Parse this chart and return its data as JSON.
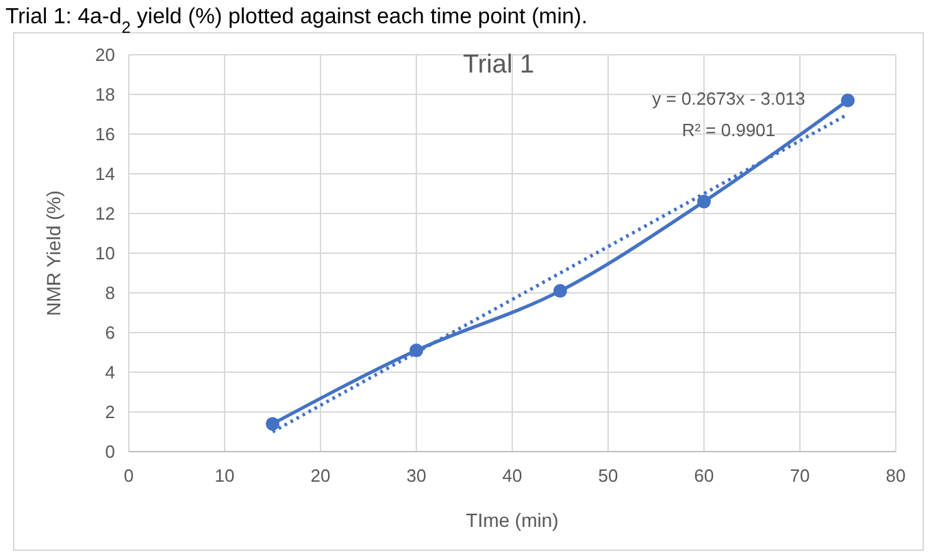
{
  "chart_data": {
    "type": "line",
    "title": "Trial 1",
    "xlabel": "TIme (min)",
    "ylabel": "NMR Yield (%)",
    "annotations": [
      "Trial 1:  4a-d$_{2}$ yield (%) plotted against each time point (min).",
      "y = 0.2673x - 3.013",
      "R² = 0.9901"
    ],
    "xlim": [
      0,
      80
    ],
    "xticks": [
      0,
      10,
      20,
      30,
      40,
      50,
      60,
      70,
      80
    ],
    "ylim": [
      0,
      20
    ],
    "yticks": [
      0,
      2,
      4,
      6,
      8,
      10,
      12,
      14,
      16,
      18,
      20
    ],
    "grid": true,
    "series": [
      {
        "color": "#4472c4",
        "x": [
          15,
          30,
          45,
          60,
          75
        ],
        "values": [
          1.4,
          5.1,
          8.1,
          12.6,
          17.7
        ],
        "marker": "circle",
        "line_style": "solid"
      },
      {
        "color": "#4472c4",
        "x": [
          15,
          75
        ],
        "values": [
          1.0,
          17.0
        ],
        "marker": "none",
        "line_style": "dotted"
      }
    ]
  }
}
